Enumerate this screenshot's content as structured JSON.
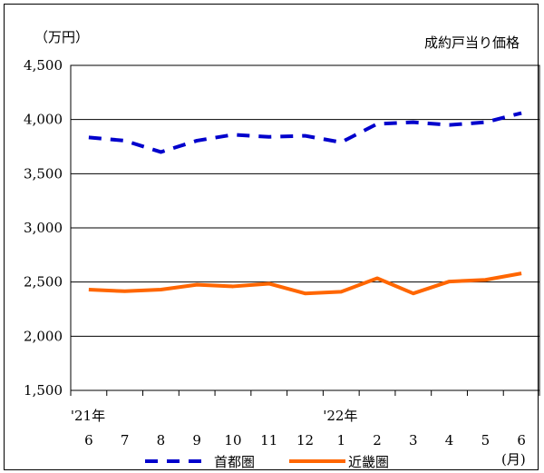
{
  "chart_data": {
    "type": "line",
    "title": "成約戸当り価格",
    "unit_label": "（万円）",
    "month_unit_label": "(月)",
    "year_markers": [
      {
        "label": "'21年",
        "at_index": 0
      },
      {
        "label": "'22年",
        "at_index": 7
      }
    ],
    "categories": [
      "6",
      "7",
      "8",
      "9",
      "10",
      "11",
      "12",
      "1",
      "2",
      "3",
      "4",
      "5",
      "6"
    ],
    "ylim": [
      1500,
      4500
    ],
    "yticks": [
      1500,
      2000,
      2500,
      3000,
      3500,
      4000,
      4500
    ],
    "ytick_labels": [
      "1,500",
      "2,000",
      "2,500",
      "3,000",
      "3,500",
      "4,000",
      "4,500"
    ],
    "grid": true,
    "legend_position": "bottom",
    "series": [
      {
        "name": "首都圏",
        "color": "#0000cc",
        "style": "dashed",
        "values": [
          3835,
          3805,
          3700,
          3805,
          3860,
          3840,
          3850,
          3790,
          3960,
          3975,
          3950,
          3975,
          4060
        ]
      },
      {
        "name": "近畿圏",
        "color": "#ff6600",
        "style": "solid",
        "values": [
          2430,
          2415,
          2430,
          2475,
          2460,
          2485,
          2395,
          2410,
          2535,
          2395,
          2505,
          2520,
          2580
        ]
      }
    ]
  }
}
